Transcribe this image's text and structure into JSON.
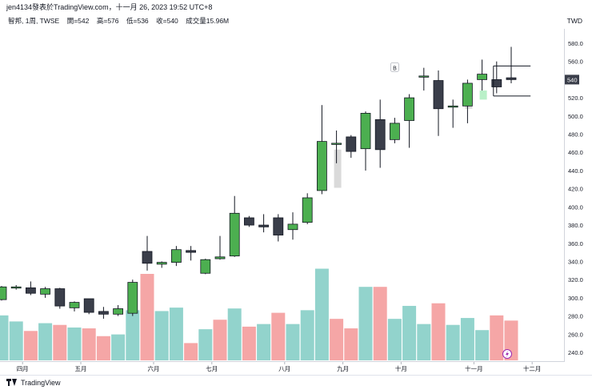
{
  "header": {
    "publisher": "jen4134發表於TradingView.com，十一月 26, 2023 19:52 UTC+8"
  },
  "legend": {
    "symbol": "智邦, 1周, TWSE",
    "open": "開=542",
    "high": "高=576",
    "low": "低=536",
    "close": "收=540",
    "volume": "成交量15.96M"
  },
  "currency": "TWD",
  "current_price_label": "540",
  "footer": {
    "brand": "TradingView"
  },
  "colors": {
    "up": "#4caf50",
    "down": "#3a3e4a",
    "vol_up": "#92d3cc",
    "vol_down": "#f5a6a6",
    "ghost_up": "#b9f0c8",
    "ghost_down": "#dadada",
    "grid_axis": "#d1d4dc",
    "label_bg": "#3a3e4a"
  },
  "chart_data": {
    "type": "candlestick",
    "y_ticks": [
      240,
      260,
      280,
      300,
      320,
      340,
      360,
      380,
      400,
      420,
      440,
      460,
      480,
      500,
      520,
      540,
      560,
      580
    ],
    "y_tick_labels": [
      "240.0",
      "260.0",
      "280.0",
      "300.0",
      "320.0",
      "340.0",
      "360.0",
      "380.0",
      "400.0",
      "420.0",
      "440.0",
      "460.0",
      "480.0",
      "500.0",
      "520.0",
      "540",
      "560.0",
      "580.0"
    ],
    "ylim": [
      230,
      590
    ],
    "x_labels": [
      {
        "index": 1,
        "label": "四月"
      },
      {
        "index": 5,
        "label": "五月"
      },
      {
        "index": 10,
        "label": "六月"
      },
      {
        "index": 14,
        "label": "七月"
      },
      {
        "index": 19,
        "label": "八月"
      },
      {
        "index": 23,
        "label": "九月"
      },
      {
        "index": 27,
        "label": "十月"
      },
      {
        "index": 32,
        "label": "十一月"
      },
      {
        "index": 36,
        "label": "十二月"
      }
    ],
    "candles": [
      {
        "o": 298,
        "h": 313,
        "l": 297,
        "c": 312
      },
      {
        "o": 311,
        "h": 314,
        "l": 309,
        "c": 312
      },
      {
        "o": 311,
        "h": 318,
        "l": 303,
        "c": 305
      },
      {
        "o": 304,
        "h": 312,
        "l": 300,
        "c": 310
      },
      {
        "o": 310,
        "h": 311,
        "l": 288,
        "c": 291
      },
      {
        "o": 289,
        "h": 296,
        "l": 285,
        "c": 295
      },
      {
        "o": 299,
        "h": 299,
        "l": 282,
        "c": 284
      },
      {
        "o": 285,
        "h": 290,
        "l": 277,
        "c": 282
      },
      {
        "o": 282,
        "h": 292,
        "l": 280,
        "c": 288
      },
      {
        "o": 283,
        "h": 320,
        "l": 280,
        "c": 317
      },
      {
        "o": 351,
        "h": 368,
        "l": 330,
        "c": 338
      },
      {
        "o": 337,
        "h": 340,
        "l": 333,
        "c": 339
      },
      {
        "o": 339,
        "h": 357,
        "l": 335,
        "c": 353
      },
      {
        "o": 352,
        "h": 357,
        "l": 341,
        "c": 350
      },
      {
        "o": 327,
        "h": 343,
        "l": 326,
        "c": 342
      },
      {
        "o": 343,
        "h": 368,
        "l": 342,
        "c": 345
      },
      {
        "o": 346,
        "h": 412,
        "l": 345,
        "c": 393
      },
      {
        "o": 388,
        "h": 390,
        "l": 378,
        "c": 380
      },
      {
        "o": 380,
        "h": 392,
        "l": 372,
        "c": 378
      },
      {
        "o": 388,
        "h": 392,
        "l": 362,
        "c": 369
      },
      {
        "o": 375,
        "h": 394,
        "l": 364,
        "c": 381
      },
      {
        "o": 383,
        "h": 415,
        "l": 381,
        "c": 410
      },
      {
        "o": 418,
        "h": 512,
        "l": 414,
        "c": 472
      },
      {
        "o": 470,
        "h": 484,
        "l": 448,
        "c": 470
      },
      {
        "o": 477,
        "h": 479,
        "l": 454,
        "c": 461
      },
      {
        "o": 464,
        "h": 505,
        "l": 440,
        "c": 503
      },
      {
        "o": 496,
        "h": 518,
        "l": 443,
        "c": 463
      },
      {
        "o": 474,
        "h": 498,
        "l": 470,
        "c": 492
      },
      {
        "o": 495,
        "h": 524,
        "l": 465,
        "c": 520
      },
      {
        "o": 543,
        "h": 553,
        "l": 528,
        "c": 544
      },
      {
        "o": 539,
        "h": 550,
        "l": 478,
        "c": 508
      },
      {
        "o": 510,
        "h": 518,
        "l": 487,
        "c": 511
      },
      {
        "o": 511,
        "h": 540,
        "l": 492,
        "c": 536
      },
      {
        "o": 540,
        "h": 562,
        "l": 528,
        "c": 546
      },
      {
        "o": 540,
        "h": 560,
        "l": 525,
        "c": 532
      },
      {
        "o": 542,
        "h": 576,
        "l": 536,
        "c": 540
      }
    ],
    "ghost_candles": [
      {
        "index": 22,
        "bottom": 420,
        "top": 465,
        "dir": "up"
      },
      {
        "index": 23,
        "bottom": 421,
        "top": 463,
        "dir": "down"
      },
      {
        "index": 32,
        "bottom": 508,
        "top": 518,
        "dir": "down"
      },
      {
        "index": 33,
        "bottom": 518,
        "top": 528,
        "dir": "up"
      }
    ],
    "volume": [
      {
        "v": 0.52,
        "up": true
      },
      {
        "v": 0.45,
        "up": true
      },
      {
        "v": 0.34,
        "up": false
      },
      {
        "v": 0.43,
        "up": true
      },
      {
        "v": 0.41,
        "up": false
      },
      {
        "v": 0.38,
        "up": true
      },
      {
        "v": 0.37,
        "up": false
      },
      {
        "v": 0.28,
        "up": false
      },
      {
        "v": 0.3,
        "up": true
      },
      {
        "v": 0.58,
        "up": true
      },
      {
        "v": 1.0,
        "up": false
      },
      {
        "v": 0.57,
        "up": true
      },
      {
        "v": 0.61,
        "up": true
      },
      {
        "v": 0.2,
        "up": false
      },
      {
        "v": 0.36,
        "up": true
      },
      {
        "v": 0.47,
        "up": false
      },
      {
        "v": 0.6,
        "up": true
      },
      {
        "v": 0.39,
        "up": false
      },
      {
        "v": 0.42,
        "up": true
      },
      {
        "v": 0.55,
        "up": false
      },
      {
        "v": 0.42,
        "up": true
      },
      {
        "v": 0.58,
        "up": true
      },
      {
        "v": 1.06,
        "up": true
      },
      {
        "v": 0.48,
        "up": false
      },
      {
        "v": 0.37,
        "up": false
      },
      {
        "v": 0.85,
        "up": true
      },
      {
        "v": 0.85,
        "up": false
      },
      {
        "v": 0.48,
        "up": true
      },
      {
        "v": 0.63,
        "up": true
      },
      {
        "v": 0.42,
        "up": true
      },
      {
        "v": 0.66,
        "up": false
      },
      {
        "v": 0.41,
        "up": true
      },
      {
        "v": 0.49,
        "up": true
      },
      {
        "v": 0.35,
        "up": true
      },
      {
        "v": 0.52,
        "up": false
      },
      {
        "v": 0.46,
        "up": false
      }
    ],
    "annotation_label": "B",
    "annotation_index": 27,
    "annotation_price": 555,
    "range_box": {
      "start_index": 34,
      "end_index": 36,
      "top": 555,
      "bottom": 522
    }
  }
}
